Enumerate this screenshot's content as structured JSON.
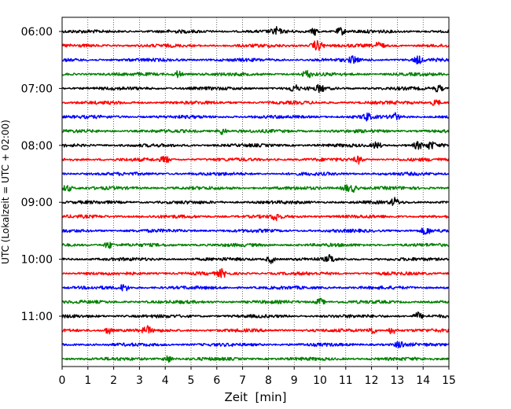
{
  "chart_data": {
    "type": "line",
    "title": "",
    "xlabel": "Zeit  [min]",
    "ylabel": "UTC (Lokalzeit = UTC + 02:00)",
    "xlim": [
      0,
      15
    ],
    "x_ticks": [
      "0",
      "1",
      "2",
      "3",
      "4",
      "5",
      "6",
      "7",
      "8",
      "9",
      "10",
      "11",
      "12",
      "13",
      "14",
      "15"
    ],
    "y_ticks": [
      "06:00",
      "07:00",
      "08:00",
      "09:00",
      "10:00",
      "11:00"
    ],
    "grid": "vertical dotted at each minute",
    "trace_interval_minutes": 15,
    "trace_colors_cycle": [
      "#000000",
      "#ff0000",
      "#0000ff",
      "#008000"
    ],
    "traces": [
      {
        "start": "06:00",
        "color": "#000000",
        "events_min": [
          8.3,
          9.8,
          10.8
        ]
      },
      {
        "start": "06:15",
        "color": "#ff0000",
        "events_min": [
          9.8,
          10.0,
          12.3
        ]
      },
      {
        "start": "06:30",
        "color": "#0000ff",
        "events_min": [
          11.3,
          13.8
        ]
      },
      {
        "start": "06:45",
        "color": "#008000",
        "events_min": [
          4.5,
          9.5
        ]
      },
      {
        "start": "07:00",
        "color": "#000000",
        "events_min": [
          9.0,
          10.0,
          14.6
        ]
      },
      {
        "start": "07:15",
        "color": "#ff0000",
        "events_min": [
          14.5
        ]
      },
      {
        "start": "07:30",
        "color": "#0000ff",
        "events_min": [
          11.8,
          12.9
        ]
      },
      {
        "start": "07:45",
        "color": "#008000",
        "events_min": [
          6.2
        ]
      },
      {
        "start": "08:00",
        "color": "#000000",
        "events_min": [
          12.2,
          13.8,
          14.3
        ]
      },
      {
        "start": "08:15",
        "color": "#ff0000",
        "events_min": [
          4.0,
          11.5
        ]
      },
      {
        "start": "08:30",
        "color": "#0000ff",
        "events_min": []
      },
      {
        "start": "08:45",
        "color": "#008000",
        "events_min": [
          0.2,
          11.0,
          11.3
        ]
      },
      {
        "start": "09:00",
        "color": "#000000",
        "events_min": [
          12.9
        ]
      },
      {
        "start": "09:15",
        "color": "#ff0000",
        "events_min": [
          8.3
        ]
      },
      {
        "start": "09:30",
        "color": "#0000ff",
        "events_min": [
          14.1
        ]
      },
      {
        "start": "09:45",
        "color": "#008000",
        "events_min": [
          1.8
        ]
      },
      {
        "start": "10:00",
        "color": "#000000",
        "events_min": [
          8.1,
          10.4
        ]
      },
      {
        "start": "10:15",
        "color": "#ff0000",
        "events_min": [
          6.2
        ]
      },
      {
        "start": "10:30",
        "color": "#0000ff",
        "events_min": [
          2.4
        ]
      },
      {
        "start": "10:45",
        "color": "#008000",
        "events_min": [
          10.0
        ]
      },
      {
        "start": "11:00",
        "color": "#000000",
        "events_min": [
          13.8
        ]
      },
      {
        "start": "11:15",
        "color": "#ff0000",
        "events_min": [
          1.8,
          3.3,
          12.0,
          12.8
        ]
      },
      {
        "start": "11:30",
        "color": "#0000ff",
        "events_min": [
          13.1
        ]
      },
      {
        "start": "11:45",
        "color": "#008000",
        "events_min": [
          4.1
        ]
      }
    ]
  }
}
